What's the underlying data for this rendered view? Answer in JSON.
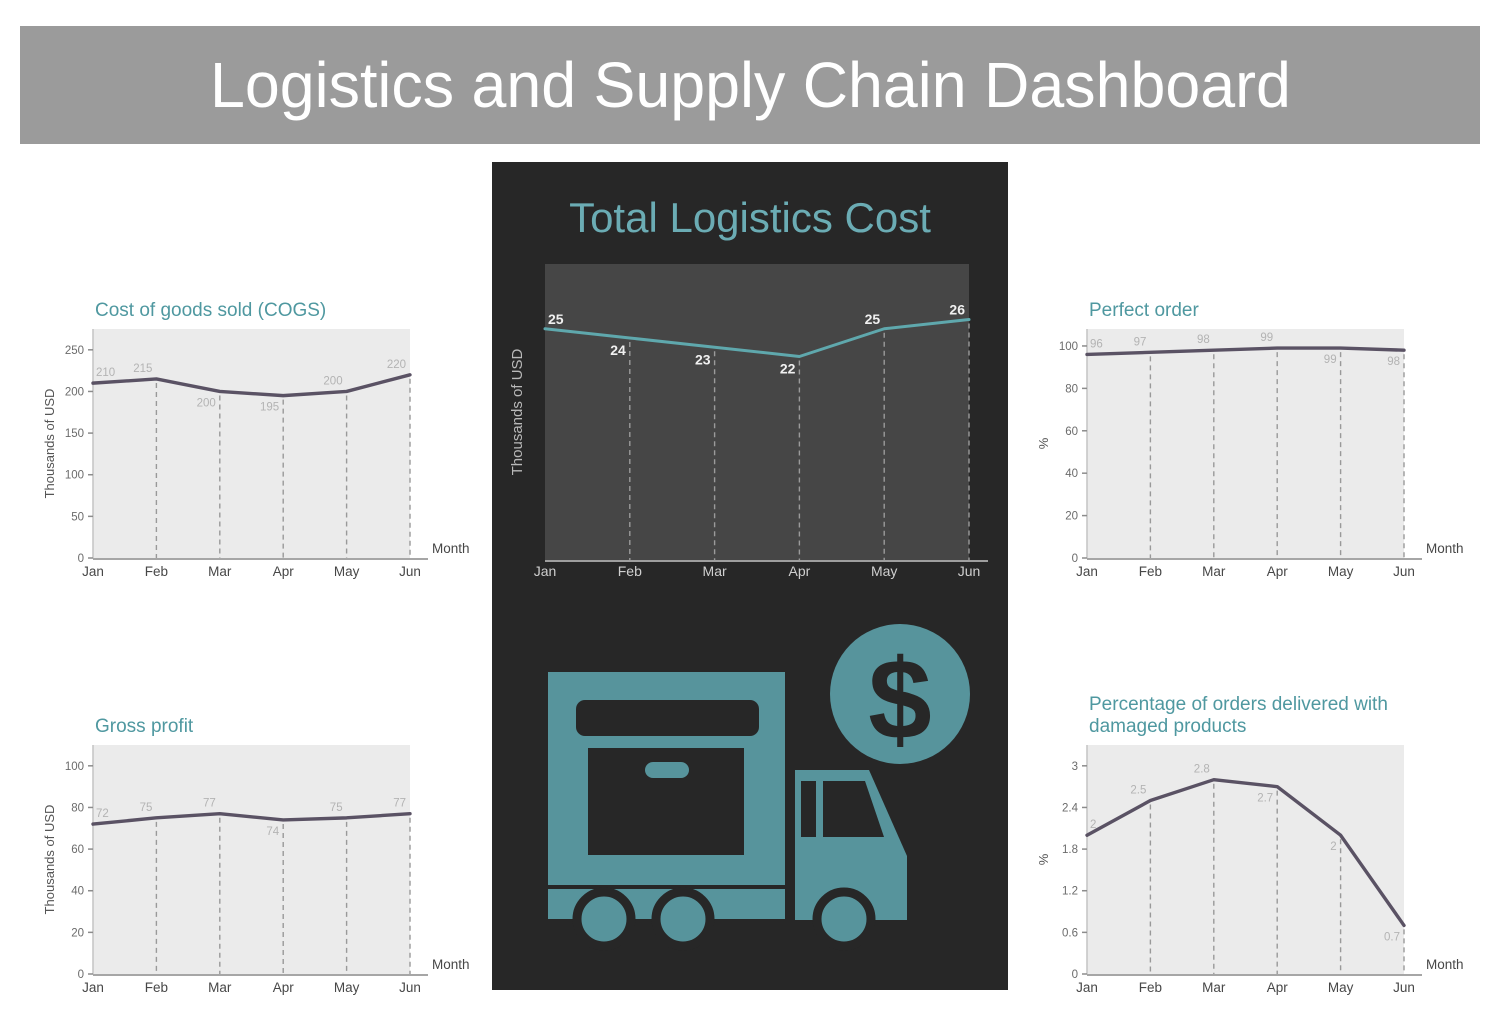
{
  "page": {
    "title": "Logistics and Supply Chain Dashboard"
  },
  "colors": {
    "header_bg": "#9b9b9b",
    "header_text": "#ffffff",
    "panel_bg": "#272727",
    "panel_plot_bg": "#464646",
    "teal_accent": "#4f98a0",
    "teal_title_dark": "#6bacb4",
    "teal_icon": "#57949c",
    "line_light": "#5a5264",
    "line_dark": "#5fa8ad",
    "plot_bg_light": "#ebebeb",
    "tick_text": "#6b6b6b",
    "month_text": "#474747",
    "data_label_light": "#b3b3b3",
    "data_label_dark": "#f0f0f0",
    "grid_light": "#999999",
    "grid_dark": "#9b9b9b",
    "axis_light": "#a6a6a6",
    "axis_dark": "#9e9e9e",
    "month_dark": "#cfcfcf",
    "ylabel_dark": "#b9b9b9"
  },
  "icons": {
    "truck": "delivery-truck-icon",
    "coin": "dollar-coin-icon",
    "dollar_symbol": "$"
  },
  "chart_data": [
    {
      "id": "total-logistics-cost",
      "type": "line",
      "theme": "dark",
      "size": "center",
      "title": "Total Logistics Cost",
      "categories": [
        "Jan",
        "Feb",
        "Mar",
        "Apr",
        "May",
        "Jun"
      ],
      "values": [
        25,
        24,
        23,
        22,
        25,
        26
      ],
      "labels": [
        "25",
        "24",
        "23",
        "22",
        "25",
        "26"
      ],
      "label_sides": [
        "above",
        "below",
        "below",
        "below",
        "above",
        "above"
      ],
      "ylabel": "Thousands of USD",
      "xlabel": "",
      "ylim": [
        0,
        32
      ],
      "yticks": [],
      "grid": "dashed-vertical-below-line",
      "legend": "none"
    },
    {
      "id": "cost-of-goods-sold",
      "type": "line",
      "theme": "light",
      "size": "small",
      "title": "Cost of goods sold (COGS)",
      "categories": [
        "Jan",
        "Feb",
        "Mar",
        "Apr",
        "May",
        "Jun"
      ],
      "values": [
        210,
        215,
        200,
        195,
        200,
        220
      ],
      "labels": [
        "210",
        "215",
        "200",
        "195",
        "200",
        "220"
      ],
      "label_sides": [
        "above",
        "above",
        "below",
        "below",
        "above",
        "above"
      ],
      "ylabel": "Thousands of USD",
      "xlabel": "Month",
      "ylim": [
        0,
        275
      ],
      "yticks": [
        0,
        50,
        100,
        150,
        200,
        250
      ],
      "grid": "dashed-vertical-below-line",
      "legend": "none"
    },
    {
      "id": "perfect-order",
      "type": "line",
      "theme": "light",
      "size": "small",
      "title": "Perfect order",
      "categories": [
        "Jan",
        "Feb",
        "Mar",
        "Apr",
        "May",
        "Jun"
      ],
      "values": [
        96,
        97,
        98,
        99,
        99,
        98
      ],
      "labels": [
        "96",
        "97",
        "98",
        "99",
        "99",
        "98"
      ],
      "label_sides": [
        "above",
        "above",
        "above",
        "above",
        "below",
        "below"
      ],
      "ylabel": "%",
      "xlabel": "Month",
      "ylim": [
        0,
        108
      ],
      "yticks": [
        0,
        20,
        40,
        60,
        80,
        100
      ],
      "grid": "dashed-vertical-below-line",
      "legend": "none"
    },
    {
      "id": "gross-profit",
      "type": "line",
      "theme": "light",
      "size": "small",
      "title": "Gross profit",
      "categories": [
        "Jan",
        "Feb",
        "Mar",
        "Apr",
        "May",
        "Jun"
      ],
      "values": [
        72,
        75,
        77,
        74,
        75,
        77
      ],
      "labels": [
        "72",
        "75",
        "77",
        "74",
        "75",
        "77"
      ],
      "label_sides": [
        "above",
        "above",
        "above",
        "below",
        "above",
        "above"
      ],
      "ylabel": "Thousands of USD",
      "xlabel": "Month",
      "ylim": [
        0,
        110
      ],
      "yticks": [
        0,
        20,
        40,
        60,
        80,
        100
      ],
      "grid": "dashed-vertical-below-line",
      "legend": "none"
    },
    {
      "id": "damaged-orders-percentage",
      "type": "line",
      "theme": "light",
      "size": "small",
      "title": "Percentage of orders delivered with damaged products",
      "categories": [
        "Jan",
        "Feb",
        "Mar",
        "Apr",
        "May",
        "Jun"
      ],
      "values": [
        2,
        2.5,
        2.8,
        2.7,
        2,
        0.7
      ],
      "labels": [
        "2",
        "2.5",
        "2.8",
        "2.7",
        "2",
        "0.7"
      ],
      "label_sides": [
        "above",
        "above",
        "above",
        "below",
        "below",
        "below"
      ],
      "ylabel": "%",
      "xlabel": "Month",
      "ylim": [
        0,
        3.3
      ],
      "yticks": [
        0,
        0.6,
        1.2,
        1.8,
        2.4,
        3
      ],
      "grid": "dashed-vertical-below-line",
      "legend": "none"
    }
  ]
}
